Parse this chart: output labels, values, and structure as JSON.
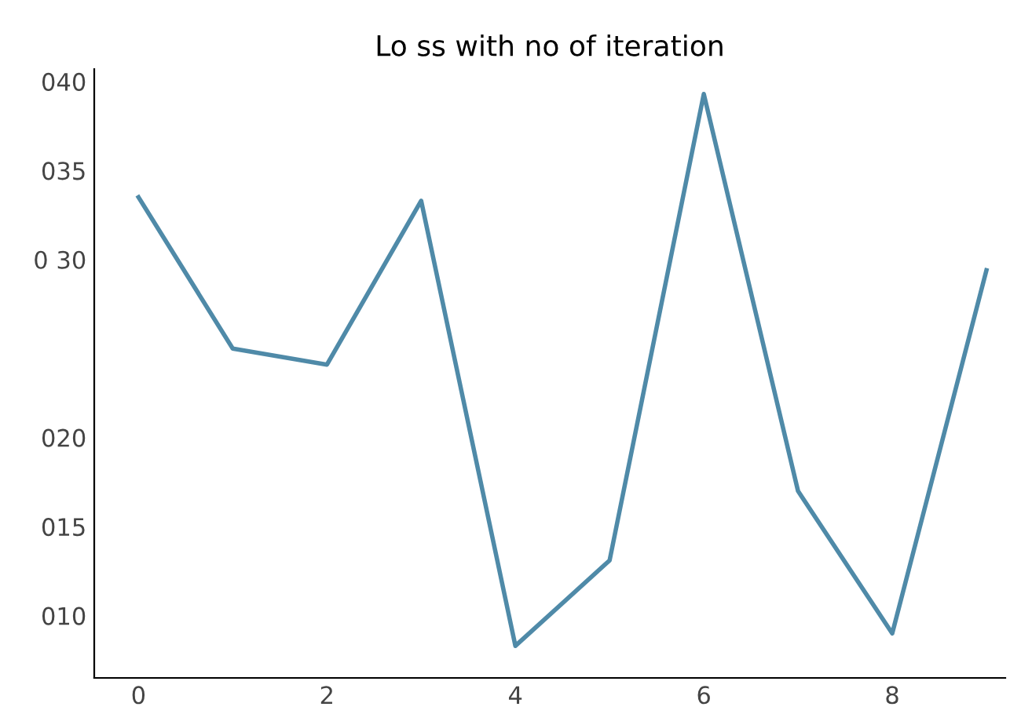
{
  "chart_data": {
    "type": "line",
    "title": "Lo ss with no of iteration",
    "x": [
      0,
      1,
      2,
      3,
      4,
      5,
      6,
      7,
      8,
      9
    ],
    "series": [
      {
        "color": "#4f8aa8",
        "values": [
          33.5,
          25,
          24.1,
          33.3,
          8.3,
          13.1,
          39.3,
          17,
          9,
          29.4
        ]
      }
    ],
    "xlim": [
      -0.47,
      9.2
    ],
    "xticks": [
      0,
      2,
      4,
      6,
      8
    ],
    "ylim": [
      6.5,
      40.7
    ],
    "yticks": [
      {
        "value": 10,
        "label": "010"
      },
      {
        "value": 15,
        "label": "015"
      },
      {
        "value": 20,
        "label": "020"
      },
      {
        "value": 30,
        "label": "0 30"
      },
      {
        "value": 35,
        "label": "035"
      },
      {
        "value": 40,
        "label": "040"
      }
    ],
    "grid": false,
    "legend": false,
    "marker": "none",
    "line_style": "solid"
  }
}
